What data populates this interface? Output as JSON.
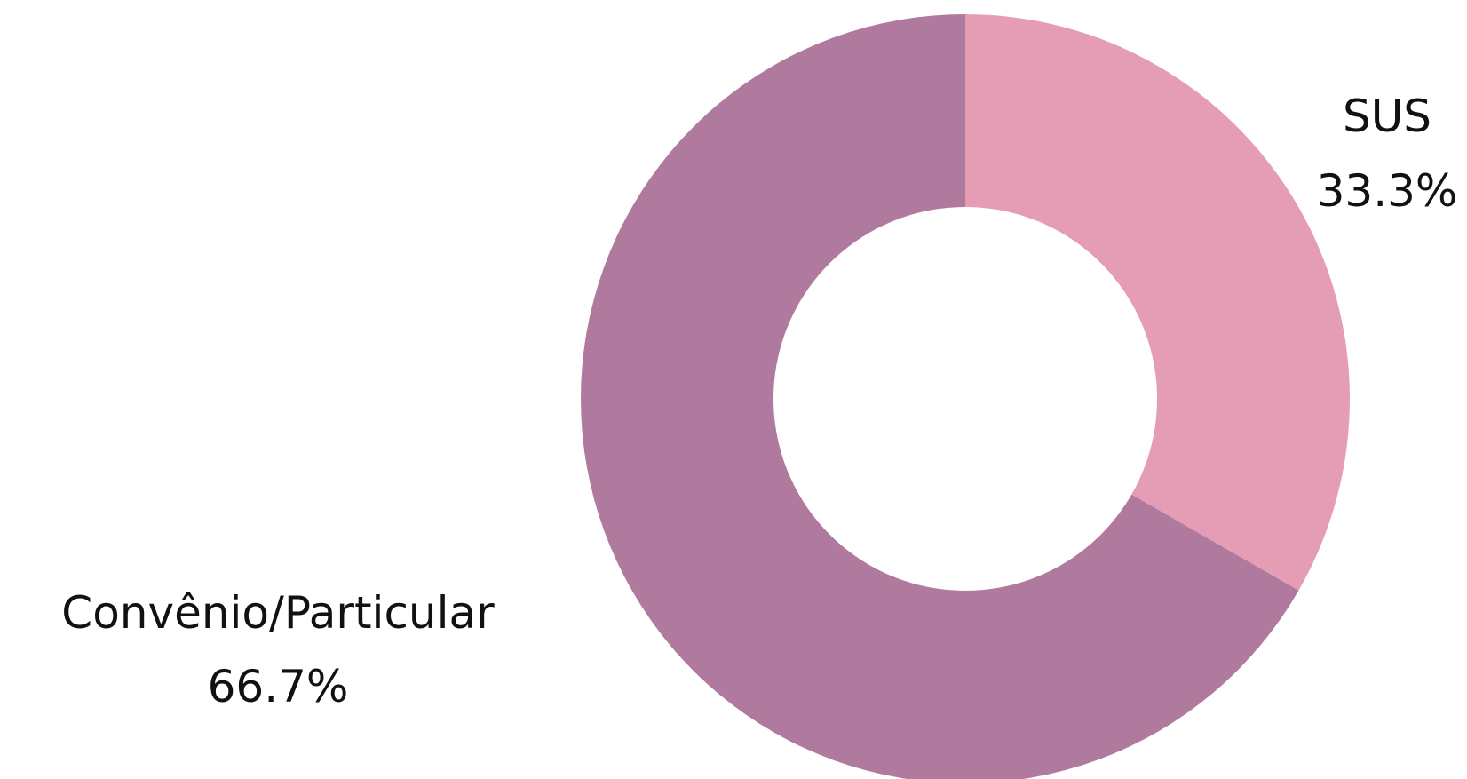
{
  "chart_data": {
    "type": "pie",
    "donut": true,
    "title": "",
    "slices": [
      {
        "label": "SUS",
        "value": 33.3,
        "display": "33.3%",
        "color": "#E59DB6"
      },
      {
        "label": "Convênio/Particular",
        "value": 66.7,
        "display": "66.7%",
        "color": "#B07A9F"
      }
    ],
    "legend": "none",
    "labels": "outside"
  }
}
